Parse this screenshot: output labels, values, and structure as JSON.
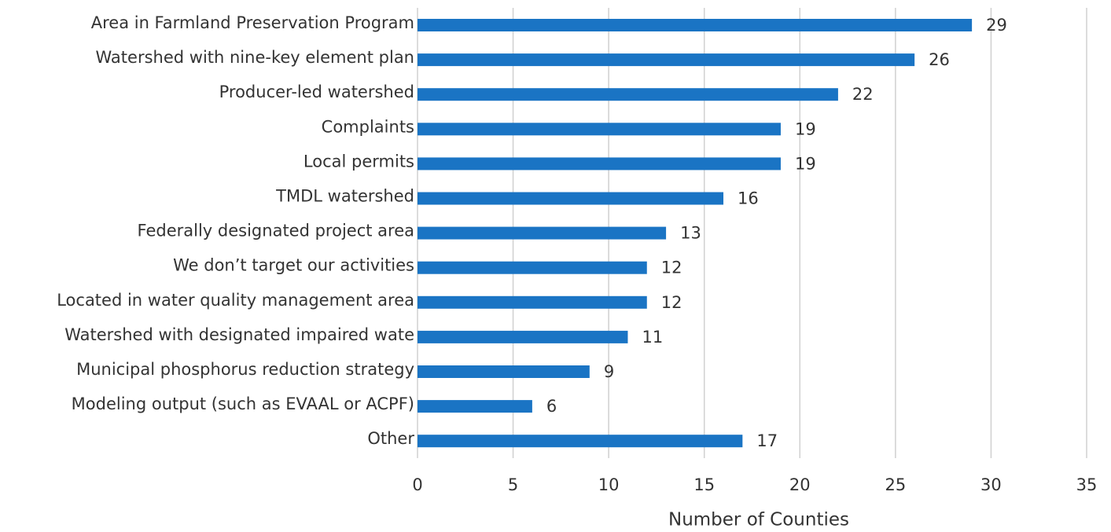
{
  "chart_data": {
    "type": "barh",
    "categories": [
      "Area in Farmland Preservation Program",
      "Watershed with nine-key element plan",
      "Producer-led watershed",
      "Complaints",
      "Local permits",
      "TMDL watershed",
      "Federally designated project area",
      "We don’t target our activities",
      "Located in water quality management area",
      "Watershed with designated impaired wate",
      "Municipal phosphorus reduction strategy",
      "Modeling output (such as EVAAL or ACPF)",
      "Other"
    ],
    "values": [
      29,
      26,
      22,
      19,
      19,
      16,
      13,
      12,
      12,
      11,
      9,
      6,
      17
    ],
    "color": "#1a74c4",
    "xlabel": "Number of Counties",
    "xlim": [
      0,
      35
    ],
    "xticks": [
      0,
      5,
      10,
      15,
      20,
      25,
      30,
      35
    ],
    "grid": true
  }
}
